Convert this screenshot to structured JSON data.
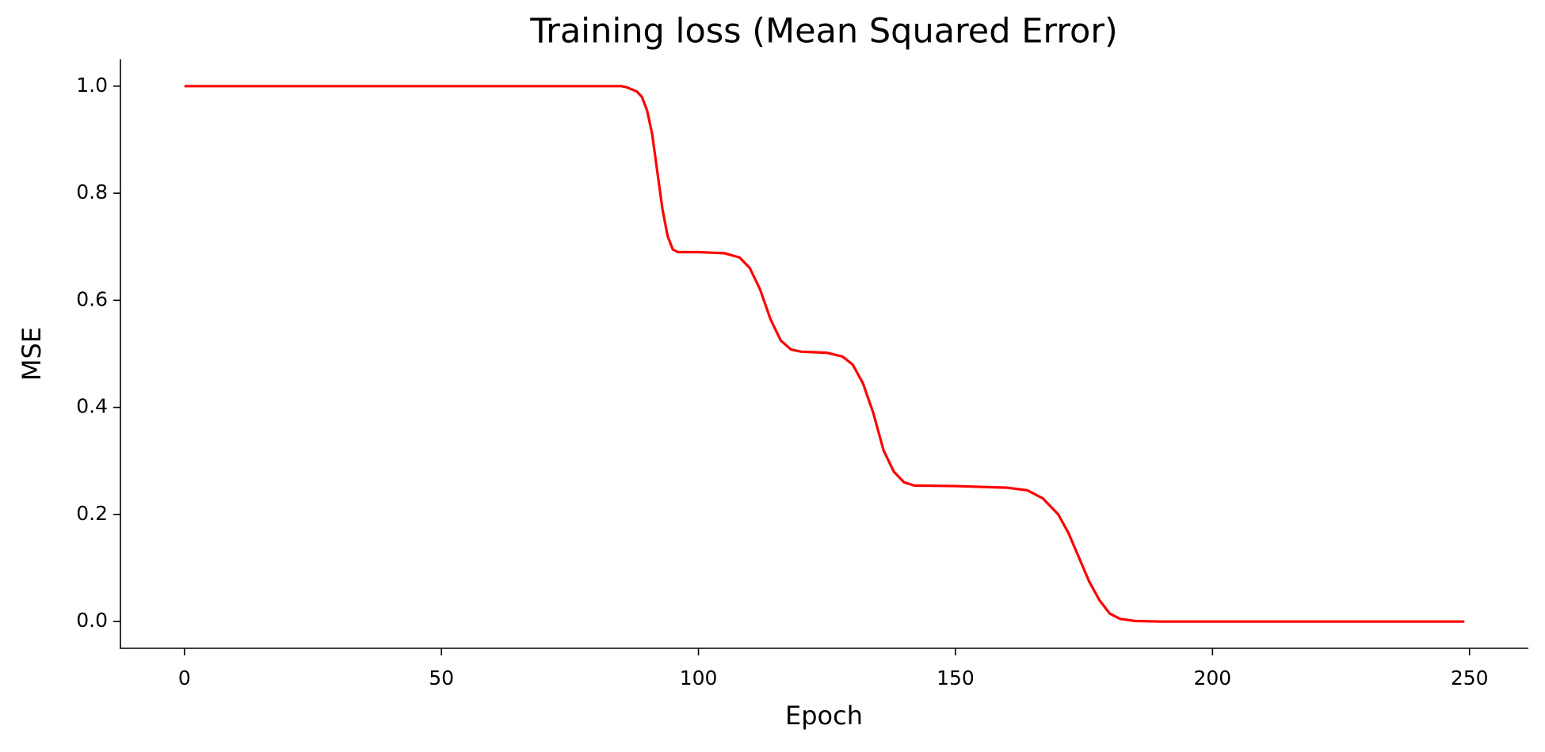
{
  "chart_data": {
    "type": "line",
    "title": "Training loss (Mean Squared Error)",
    "x_label": "Epoch",
    "y_label": "MSE",
    "color": "#ff0000",
    "x": [
      0,
      20,
      40,
      60,
      80,
      85,
      86,
      88,
      89,
      90,
      91,
      92,
      93,
      94,
      95,
      96,
      100,
      105,
      108,
      110,
      112,
      114,
      116,
      118,
      120,
      125,
      128,
      130,
      132,
      134,
      136,
      138,
      140,
      142,
      150,
      160,
      164,
      167,
      170,
      172,
      174,
      176,
      178,
      180,
      182,
      185,
      190,
      220,
      249
    ],
    "values": [
      1.0,
      1.0,
      1.0,
      1.0,
      1.0,
      1.0,
      0.998,
      0.99,
      0.98,
      0.955,
      0.91,
      0.84,
      0.77,
      0.72,
      0.695,
      0.69,
      0.69,
      0.688,
      0.68,
      0.66,
      0.62,
      0.565,
      0.525,
      0.508,
      0.504,
      0.502,
      0.495,
      0.48,
      0.445,
      0.39,
      0.32,
      0.28,
      0.26,
      0.254,
      0.253,
      0.25,
      0.245,
      0.23,
      0.2,
      0.165,
      0.12,
      0.075,
      0.04,
      0.015,
      0.005,
      0.001,
      0,
      0,
      0
    ],
    "xlim": [
      -12.45,
      261.45
    ],
    "ylim": [
      -0.05,
      1.05
    ],
    "xticks": [
      0,
      50,
      100,
      150,
      200,
      250
    ],
    "yticks": [
      {
        "value": 0,
        "label": "0.0"
      },
      0.2,
      0.4,
      0.6,
      0.8,
      {
        "value": 1,
        "label": "1.0"
      }
    ],
    "grid": false
  }
}
